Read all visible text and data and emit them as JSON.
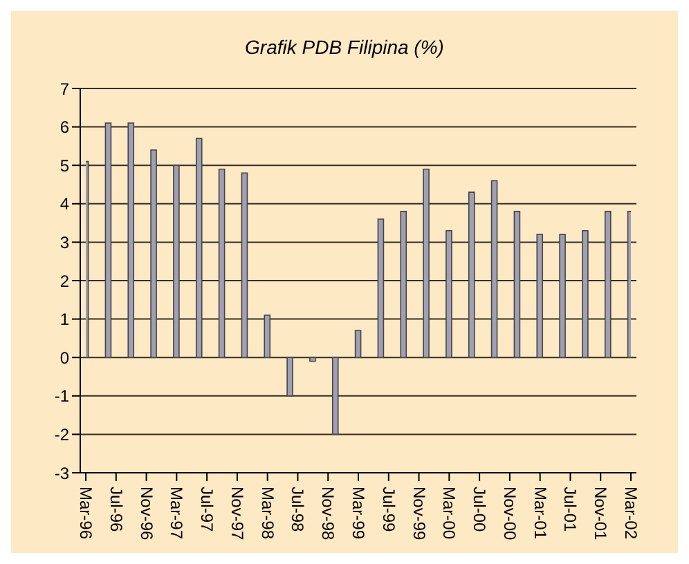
{
  "chart_data": {
    "type": "bar",
    "title": "Grafik PDB Filipina (%)",
    "x": [
      "1996-03",
      "1996-06",
      "1996-09",
      "1996-12",
      "1997-03",
      "1997-06",
      "1997-09",
      "1997-12",
      "1998-03",
      "1998-06",
      "1998-09",
      "1998-12",
      "1999-03",
      "1999-06",
      "1999-09",
      "1999-12",
      "2000-03",
      "2000-06",
      "2000-09",
      "2000-12",
      "2001-03",
      "2001-06",
      "2001-09",
      "2001-12",
      "2002-03"
    ],
    "values": [
      5.1,
      6.1,
      6.1,
      5.4,
      5.0,
      5.7,
      4.9,
      4.8,
      1.1,
      -1.0,
      -0.1,
      -2.0,
      0.7,
      3.6,
      3.8,
      4.9,
      3.3,
      4.3,
      4.6,
      3.8,
      3.2,
      3.2,
      3.3,
      3.8,
      3.8
    ],
    "color": "#a0a0b4",
    "xlim": [
      "1996-03",
      "2002-03"
    ],
    "xticks": [
      {
        "value": "1996-03",
        "label": "Mar-96"
      },
      {
        "value": "1996-07",
        "label": "Jul-96"
      },
      {
        "value": "1996-11",
        "label": "Nov-96"
      },
      {
        "value": "1997-03",
        "label": "Mar-97"
      },
      {
        "value": "1997-07",
        "label": "Jul-97"
      },
      {
        "value": "1997-11",
        "label": "Nov-97"
      },
      {
        "value": "1998-03",
        "label": "Mar-98"
      },
      {
        "value": "1998-07",
        "label": "Jul-98"
      },
      {
        "value": "1998-11",
        "label": "Nov-98"
      },
      {
        "value": "1999-03",
        "label": "Mar-99"
      },
      {
        "value": "1999-07",
        "label": "Jul-99"
      },
      {
        "value": "1999-11",
        "label": "Nov-99"
      },
      {
        "value": "2000-03",
        "label": "Mar-00"
      },
      {
        "value": "2000-07",
        "label": "Jul-00"
      },
      {
        "value": "2000-11",
        "label": "Nov-00"
      },
      {
        "value": "2001-03",
        "label": "Mar-01"
      },
      {
        "value": "2001-07",
        "label": "Jul-01"
      },
      {
        "value": "2001-11",
        "label": "Nov-01"
      },
      {
        "value": "2002-03",
        "label": "Mar-02"
      }
    ],
    "ylim": [
      -3,
      7
    ],
    "yticks": [
      -3,
      -2,
      -1,
      0,
      1,
      2,
      3,
      4,
      5,
      6,
      7
    ],
    "grid": "y",
    "legend": false
  }
}
